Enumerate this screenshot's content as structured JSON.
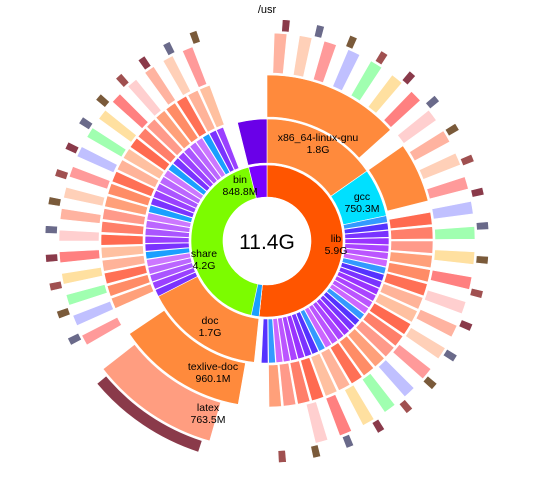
{
  "title": "/usr",
  "total_label": "11.4G",
  "chart_data": {
    "type": "sunburst",
    "root": "/usr",
    "total": "11.4G",
    "children": [
      {
        "name": "lib",
        "size": "5.9G",
        "color": "#ff5500",
        "children": [
          {
            "name": "x86_64-linux-gnu",
            "size": "1.8G",
            "color": "#ff8a3c"
          },
          {
            "name": "gcc",
            "size": "750.3M",
            "color": "#00e0ff"
          }
        ]
      },
      {
        "name": "share",
        "size": "4.2G",
        "color": "#7cfc00",
        "children": [
          {
            "name": "doc",
            "size": "1.7G",
            "color": "#ff8a3c",
            "children": [
              {
                "name": "texlive-doc",
                "size": "960.1M",
                "color": "#ff8a3c",
                "children": [
                  {
                    "name": "latex",
                    "size": "763.5M",
                    "color": "#ff9d80"
                  }
                ]
              }
            ]
          }
        ]
      },
      {
        "name": "bin",
        "size": "848.8M",
        "color": "#7a00ff"
      }
    ]
  }
}
